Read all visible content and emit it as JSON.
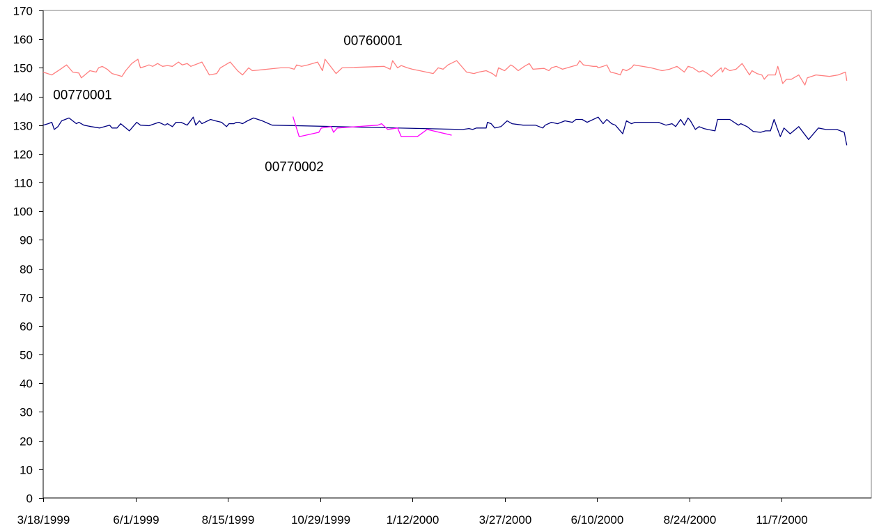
{
  "chart_data": {
    "type": "line",
    "title": "",
    "xlabel": "",
    "ylabel": "",
    "ylim": [
      0,
      170
    ],
    "y_ticks": [
      "0",
      "10",
      "20",
      "30",
      "40",
      "50",
      "60",
      "70",
      "80",
      "90",
      "100",
      "110",
      "120",
      "130",
      "140",
      "150",
      "160",
      "170"
    ],
    "x_range": [
      "1999-03-18",
      "2001-01-19"
    ],
    "x_ticks": [
      "3/18/1999",
      "6/1/1999",
      "8/15/1999",
      "10/29/1999",
      "1/12/2000",
      "3/27/2000",
      "6/10/2000",
      "8/24/2000",
      "11/7/2000"
    ],
    "x_tick_dates": [
      "1999-03-18",
      "1999-06-01",
      "1999-08-15",
      "1999-10-29",
      "2000-01-12",
      "2000-03-27",
      "2000-06-10",
      "2000-08-24",
      "2000-11-07"
    ],
    "grid": false,
    "legend": "none",
    "series": [
      {
        "name": "00760001",
        "color": "#ff7f7f",
        "label_date": "1999-12-11",
        "label_y": 158,
        "points": [
          [
            "1999-03-18",
            148.5
          ],
          [
            "1999-03-25",
            147.5
          ],
          [
            "1999-04-01",
            149.5
          ],
          [
            "1999-04-06",
            151
          ],
          [
            "1999-04-11",
            148.5
          ],
          [
            "1999-04-16",
            148.2
          ],
          [
            "1999-04-18",
            146.5
          ],
          [
            "1999-04-20",
            147.2
          ],
          [
            "1999-04-25",
            149
          ],
          [
            "1999-04-30",
            148.5
          ],
          [
            "1999-05-02",
            150
          ],
          [
            "1999-05-05",
            150.5
          ],
          [
            "1999-05-09",
            149.5
          ],
          [
            "1999-05-13",
            148
          ],
          [
            "1999-05-17",
            147.5
          ],
          [
            "1999-05-21",
            147
          ],
          [
            "1999-05-24",
            149
          ],
          [
            "1999-05-29",
            151.5
          ],
          [
            "1999-06-03",
            153
          ],
          [
            "1999-06-05",
            150
          ],
          [
            "1999-06-09",
            150.5
          ],
          [
            "1999-06-12",
            151
          ],
          [
            "1999-06-15",
            150.5
          ],
          [
            "1999-06-19",
            151.5
          ],
          [
            "1999-06-23",
            150.5
          ],
          [
            "1999-06-27",
            150.8
          ],
          [
            "1999-07-01",
            150.5
          ],
          [
            "1999-07-06",
            152
          ],
          [
            "1999-07-09",
            151
          ],
          [
            "1999-07-13",
            151.5
          ],
          [
            "1999-07-16",
            150.5
          ],
          [
            "1999-07-25",
            152
          ],
          [
            "1999-07-31",
            147.5
          ],
          [
            "1999-08-06",
            148
          ],
          [
            "1999-08-09",
            150
          ],
          [
            "1999-08-17",
            152
          ],
          [
            "1999-08-23",
            149
          ],
          [
            "1999-08-27",
            147.5
          ],
          [
            "1999-09-01",
            150
          ],
          [
            "1999-09-04",
            149
          ],
          [
            "1999-09-16",
            149.5
          ],
          [
            "1999-09-27",
            150
          ],
          [
            "1999-10-04",
            150
          ],
          [
            "1999-10-08",
            149.5
          ],
          [
            "1999-10-10",
            151
          ],
          [
            "1999-10-14",
            150.5
          ],
          [
            "1999-10-19",
            151
          ],
          [
            "1999-10-27",
            152
          ],
          [
            "1999-10-31",
            149
          ],
          [
            "1999-11-02",
            153
          ],
          [
            "1999-11-11",
            148
          ],
          [
            "1999-11-16",
            150
          ],
          [
            "1999-12-20",
            150.5
          ],
          [
            "1999-12-25",
            149.5
          ],
          [
            "1999-12-27",
            152.5
          ],
          [
            "1999-12-31",
            150
          ],
          [
            "2000-01-03",
            150.8
          ],
          [
            "2000-01-08",
            150
          ],
          [
            "2000-01-12",
            149.5
          ],
          [
            "2000-01-18",
            149
          ],
          [
            "2000-01-29",
            148
          ],
          [
            "2000-02-02",
            150
          ],
          [
            "2000-02-06",
            149.5
          ],
          [
            "2000-02-10",
            151
          ],
          [
            "2000-02-17",
            152.5
          ],
          [
            "2000-02-25",
            148.5
          ],
          [
            "2000-03-02",
            148
          ],
          [
            "2000-03-06",
            148.5
          ],
          [
            "2000-03-12",
            149
          ],
          [
            "2000-03-17",
            148
          ],
          [
            "2000-03-20",
            147
          ],
          [
            "2000-03-22",
            150
          ],
          [
            "2000-03-27",
            149
          ],
          [
            "2000-04-01",
            151
          ],
          [
            "2000-04-03",
            150.5
          ],
          [
            "2000-04-07",
            149
          ],
          [
            "2000-04-12",
            150.5
          ],
          [
            "2000-04-16",
            151.5
          ],
          [
            "2000-04-19",
            149.5
          ],
          [
            "2000-04-28",
            149.8
          ],
          [
            "2000-05-02",
            149
          ],
          [
            "2000-05-04",
            150
          ],
          [
            "2000-05-08",
            150.5
          ],
          [
            "2000-05-13",
            149.5
          ],
          [
            "2000-05-21",
            150.5
          ],
          [
            "2000-05-25",
            151
          ],
          [
            "2000-05-27",
            152.5
          ],
          [
            "2000-05-30",
            151
          ],
          [
            "2000-06-07",
            150.5
          ],
          [
            "2000-06-10",
            150.5
          ],
          [
            "2000-06-11",
            150
          ],
          [
            "2000-06-15",
            150.5
          ],
          [
            "2000-06-18",
            151
          ],
          [
            "2000-06-21",
            148.5
          ],
          [
            "2000-06-26",
            148
          ],
          [
            "2000-06-29",
            147.5
          ],
          [
            "2000-07-01",
            149.5
          ],
          [
            "2000-07-04",
            149
          ],
          [
            "2000-07-08",
            150
          ],
          [
            "2000-07-10",
            151
          ],
          [
            "2000-07-24",
            150
          ],
          [
            "2000-08-02",
            149
          ],
          [
            "2000-08-08",
            149.5
          ],
          [
            "2000-08-14",
            150.5
          ],
          [
            "2000-08-17",
            149.5
          ],
          [
            "2000-08-20",
            148.5
          ],
          [
            "2000-08-23",
            150.5
          ],
          [
            "2000-08-27",
            150
          ],
          [
            "2000-09-01",
            148.5
          ],
          [
            "2000-09-04",
            149
          ],
          [
            "2000-09-08",
            148
          ],
          [
            "2000-09-11",
            147
          ],
          [
            "2000-09-15",
            148.5
          ],
          [
            "2000-09-19",
            150
          ],
          [
            "2000-09-20",
            148.5
          ],
          [
            "2000-09-22",
            150
          ],
          [
            "2000-09-26",
            149
          ],
          [
            "2000-10-01",
            149.5
          ],
          [
            "2000-10-06",
            151.5
          ],
          [
            "2000-10-12",
            147.5
          ],
          [
            "2000-10-14",
            149
          ],
          [
            "2000-10-18",
            148
          ],
          [
            "2000-10-22",
            147.5
          ],
          [
            "2000-10-24",
            146
          ],
          [
            "2000-10-27",
            147.5
          ],
          [
            "2000-11-02",
            147.5
          ],
          [
            "2000-11-04",
            150.5
          ],
          [
            "2000-11-06",
            147.5
          ],
          [
            "2000-11-08",
            144.5
          ],
          [
            "2000-11-11",
            146
          ],
          [
            "2000-11-15",
            146
          ],
          [
            "2000-11-21",
            147.5
          ],
          [
            "2000-11-26",
            144
          ],
          [
            "2000-11-28",
            146.5
          ],
          [
            "2000-12-05",
            147.5
          ],
          [
            "2000-12-16",
            147
          ],
          [
            "2000-12-23",
            147.5
          ],
          [
            "2000-12-29",
            148.5
          ],
          [
            "2000-12-30",
            145.5
          ]
        ]
      },
      {
        "name": "00770001",
        "color": "#000080",
        "label_date": "1999-04-19",
        "label_y": 139,
        "points": [
          [
            "1999-03-18",
            130
          ],
          [
            "1999-03-22",
            130.5
          ],
          [
            "1999-03-25",
            131
          ],
          [
            "1999-03-27",
            128.5
          ],
          [
            "1999-03-30",
            129.5
          ],
          [
            "1999-04-02",
            131.5
          ],
          [
            "1999-04-08",
            132.5
          ],
          [
            "1999-04-14",
            130.5
          ],
          [
            "1999-04-16",
            131
          ],
          [
            "1999-04-20",
            130
          ],
          [
            "1999-04-26",
            129.5
          ],
          [
            "1999-05-03",
            129
          ],
          [
            "1999-05-11",
            130
          ],
          [
            "1999-05-13",
            129
          ],
          [
            "1999-05-17",
            129
          ],
          [
            "1999-05-20",
            130.5
          ],
          [
            "1999-05-27",
            128
          ],
          [
            "1999-06-02",
            131
          ],
          [
            "1999-06-05",
            130
          ],
          [
            "1999-06-12",
            129.8
          ],
          [
            "1999-06-20",
            131
          ],
          [
            "1999-06-25",
            130
          ],
          [
            "1999-06-27",
            130.5
          ],
          [
            "1999-07-01",
            129.5
          ],
          [
            "1999-07-04",
            131
          ],
          [
            "1999-07-08",
            131
          ],
          [
            "1999-07-13",
            130
          ],
          [
            "1999-07-18",
            132.8
          ],
          [
            "1999-07-20",
            130
          ],
          [
            "1999-07-23",
            131.5
          ],
          [
            "1999-07-25",
            130.5
          ],
          [
            "1999-08-01",
            132
          ],
          [
            "1999-08-05",
            131.5
          ],
          [
            "1999-08-10",
            131
          ],
          [
            "1999-08-14",
            129.5
          ],
          [
            "1999-08-16",
            130.5
          ],
          [
            "1999-08-20",
            130.5
          ],
          [
            "1999-08-22",
            131
          ],
          [
            "1999-08-24",
            131
          ],
          [
            "1999-08-27",
            130.5
          ],
          [
            "1999-08-31",
            131.5
          ],
          [
            "1999-09-05",
            132.5
          ],
          [
            "1999-09-12",
            131.5
          ],
          [
            "1999-09-20",
            130
          ],
          [
            "2000-02-22",
            128.5
          ],
          [
            "2000-02-27",
            128.8
          ],
          [
            "2000-03-01",
            128.5
          ],
          [
            "2000-03-04",
            129
          ],
          [
            "2000-03-12",
            129
          ],
          [
            "2000-03-13",
            131
          ],
          [
            "2000-03-16",
            130.5
          ],
          [
            "2000-03-19",
            129
          ],
          [
            "2000-03-24",
            129.5
          ],
          [
            "2000-03-29",
            131.5
          ],
          [
            "2000-04-02",
            130.5
          ],
          [
            "2000-04-11",
            130
          ],
          [
            "2000-04-21",
            130
          ],
          [
            "2000-04-27",
            129
          ],
          [
            "2000-04-29",
            130
          ],
          [
            "2000-05-04",
            131
          ],
          [
            "2000-05-09",
            130.5
          ],
          [
            "2000-05-15",
            131.5
          ],
          [
            "2000-05-21",
            131
          ],
          [
            "2000-05-24",
            132
          ],
          [
            "2000-05-29",
            132
          ],
          [
            "2000-06-02",
            131
          ],
          [
            "2000-06-11",
            132.8
          ],
          [
            "2000-06-15",
            130.5
          ],
          [
            "2000-06-18",
            132
          ],
          [
            "2000-06-22",
            130.5
          ],
          [
            "2000-06-25",
            130
          ],
          [
            "2000-06-28",
            128.5
          ],
          [
            "2000-07-01",
            127
          ],
          [
            "2000-07-04",
            131.5
          ],
          [
            "2000-07-08",
            130.5
          ],
          [
            "2000-07-11",
            131
          ],
          [
            "2000-07-15",
            131
          ],
          [
            "2000-07-30",
            131
          ],
          [
            "2000-08-05",
            130
          ],
          [
            "2000-08-10",
            130.5
          ],
          [
            "2000-08-13",
            129.5
          ],
          [
            "2000-08-17",
            132
          ],
          [
            "2000-08-20",
            130
          ],
          [
            "2000-08-23",
            132.5
          ],
          [
            "2000-08-25",
            131.5
          ],
          [
            "2000-08-29",
            128.5
          ],
          [
            "2000-09-01",
            129.5
          ],
          [
            "2000-09-05",
            128.8
          ],
          [
            "2000-09-08",
            128.5
          ],
          [
            "2000-09-14",
            128
          ],
          [
            "2000-09-16",
            132
          ],
          [
            "2000-09-21",
            132
          ],
          [
            "2000-09-26",
            132
          ],
          [
            "2000-10-03",
            130
          ],
          [
            "2000-10-05",
            130.5
          ],
          [
            "2000-10-10",
            129.5
          ],
          [
            "2000-10-15",
            127.8
          ],
          [
            "2000-10-21",
            127.5
          ],
          [
            "2000-10-25",
            128
          ],
          [
            "2000-10-29",
            128
          ],
          [
            "2000-11-01",
            132
          ],
          [
            "2000-11-03",
            129.5
          ],
          [
            "2000-11-06",
            126
          ],
          [
            "2000-11-09",
            129
          ],
          [
            "2000-11-14",
            127
          ],
          [
            "2000-11-21",
            129.5
          ],
          [
            "2000-11-29",
            125
          ],
          [
            "2000-12-07",
            129
          ],
          [
            "2000-12-13",
            128.5
          ],
          [
            "2000-12-16",
            128.5
          ],
          [
            "2000-12-22",
            128.5
          ],
          [
            "2000-12-28",
            127.5
          ],
          [
            "2000-12-30",
            123
          ]
        ]
      },
      {
        "name": "00770002",
        "color": "#ff00ff",
        "label_date": "1999-10-08",
        "label_y": 114,
        "points": [
          [
            "1999-10-07",
            133
          ],
          [
            "1999-10-12",
            126
          ],
          [
            "1999-10-28",
            127.5
          ],
          [
            "1999-10-30",
            129
          ],
          [
            "1999-11-07",
            129.5
          ],
          [
            "1999-11-09",
            127.5
          ],
          [
            "1999-11-12",
            129
          ],
          [
            "1999-12-15",
            130
          ],
          [
            "1999-12-18",
            130.5
          ],
          [
            "1999-12-23",
            128.5
          ],
          [
            "1999-12-31",
            129
          ],
          [
            "2000-01-03",
            126
          ],
          [
            "2000-01-16",
            126
          ],
          [
            "2000-01-24",
            128.5
          ],
          [
            "2000-02-13",
            126.5
          ]
        ]
      }
    ]
  }
}
